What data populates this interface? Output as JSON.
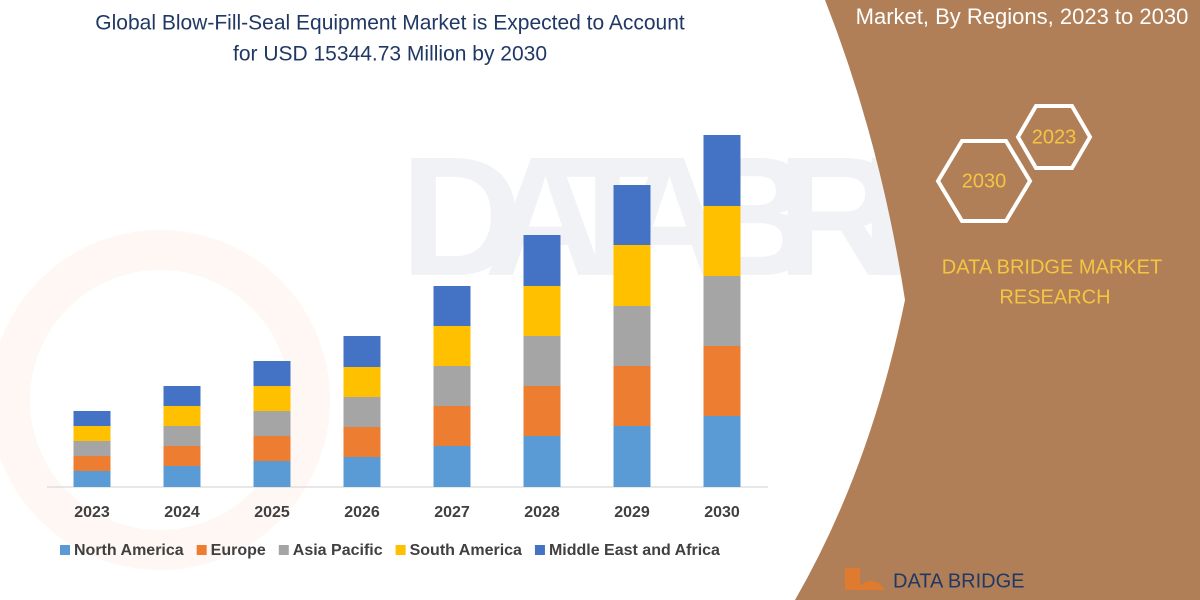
{
  "chart_data": {
    "type": "stacked_bar",
    "title": [
      "Global Blow-Fill-Seal Equipment Market is Expected to Account",
      "for USD 15344.73 Million by 2030"
    ],
    "categories": [
      "2023",
      "2024",
      "2025",
      "2026",
      "2027",
      "2028",
      "2029",
      "2030"
    ],
    "series": [
      {
        "name": "North America",
        "color": "#5b9bd5",
        "values": [
          16,
          21,
          26,
          30,
          41,
          51,
          61,
          71
        ]
      },
      {
        "name": "Europe",
        "color": "#ed7d31",
        "values": [
          15,
          20,
          25,
          30,
          40,
          50,
          60,
          70
        ]
      },
      {
        "name": "Asia Pacific",
        "color": "#a5a5a5",
        "values": [
          15,
          20,
          25,
          30,
          40,
          50,
          60,
          70
        ]
      },
      {
        "name": "South America",
        "color": "#ffc000",
        "values": [
          15,
          20,
          25,
          30,
          40,
          50,
          61,
          70
        ]
      },
      {
        "name": "Middle East and Africa",
        "color": "#4472c4",
        "values": [
          15,
          20,
          25,
          31,
          40,
          51,
          60,
          71
        ]
      }
    ],
    "legend": "bottom"
  },
  "panel": {
    "subtitle": "Market, By Regions, 2023 to 2030",
    "hex_top": "2023",
    "hex_bottom": "2030",
    "brand": [
      "DATA BRIDGE MARKET",
      "RESEARCH"
    ],
    "logo": "DATA BRIDGE"
  }
}
